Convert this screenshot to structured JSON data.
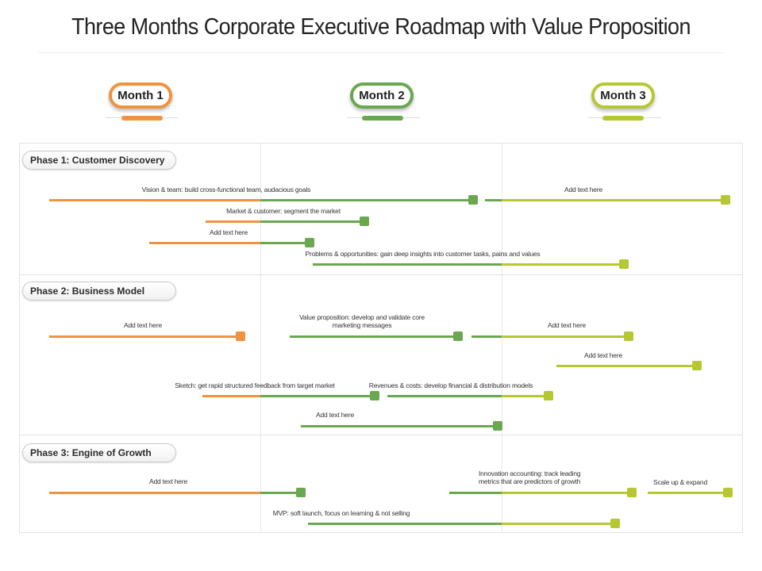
{
  "title": "Three Months Corporate Executive Roadmap with Value Proposition",
  "colors": {
    "month1": "#f0923e",
    "month2": "#6aa84f",
    "month3": "#b5c832"
  },
  "months": [
    {
      "label": "Month 1",
      "color": "#f0923e"
    },
    {
      "label": "Month 2",
      "color": "#6aa84f"
    },
    {
      "label": "Month 3",
      "color": "#b5c832"
    }
  ],
  "phases": [
    {
      "label": "Phase 1: Customer Discovery",
      "tasks": [
        {
          "label": "Vision & team: build cross-functional team, audacious goals"
        },
        {
          "label": "Add text here"
        },
        {
          "label": "Market & customer: segment the market"
        },
        {
          "label": "Add text here"
        },
        {
          "label": "Problems & opportunities: gain deep insights into customer tasks, pains and values"
        }
      ]
    },
    {
      "label": "Phase 2: Business Model",
      "tasks": [
        {
          "label": "Add text here"
        },
        {
          "label": "Value proposition: develop and validate core marketing messages"
        },
        {
          "label": "Add text here"
        },
        {
          "label": "Add text here"
        },
        {
          "label": "Sketch: get rapid structured feedback from target market"
        },
        {
          "label": "Revenues & costs: develop financial & distribution models"
        },
        {
          "label": "Add text here"
        }
      ]
    },
    {
      "label": "Phase 3: Engine of Growth",
      "tasks": [
        {
          "label": "Add text here"
        },
        {
          "label": "Innovation accounting: track leading metrics that are predictors of growth"
        },
        {
          "label": "Scale up & expand"
        },
        {
          "label": "MVP: soft launch, focus on learning & not selling"
        }
      ]
    }
  ]
}
